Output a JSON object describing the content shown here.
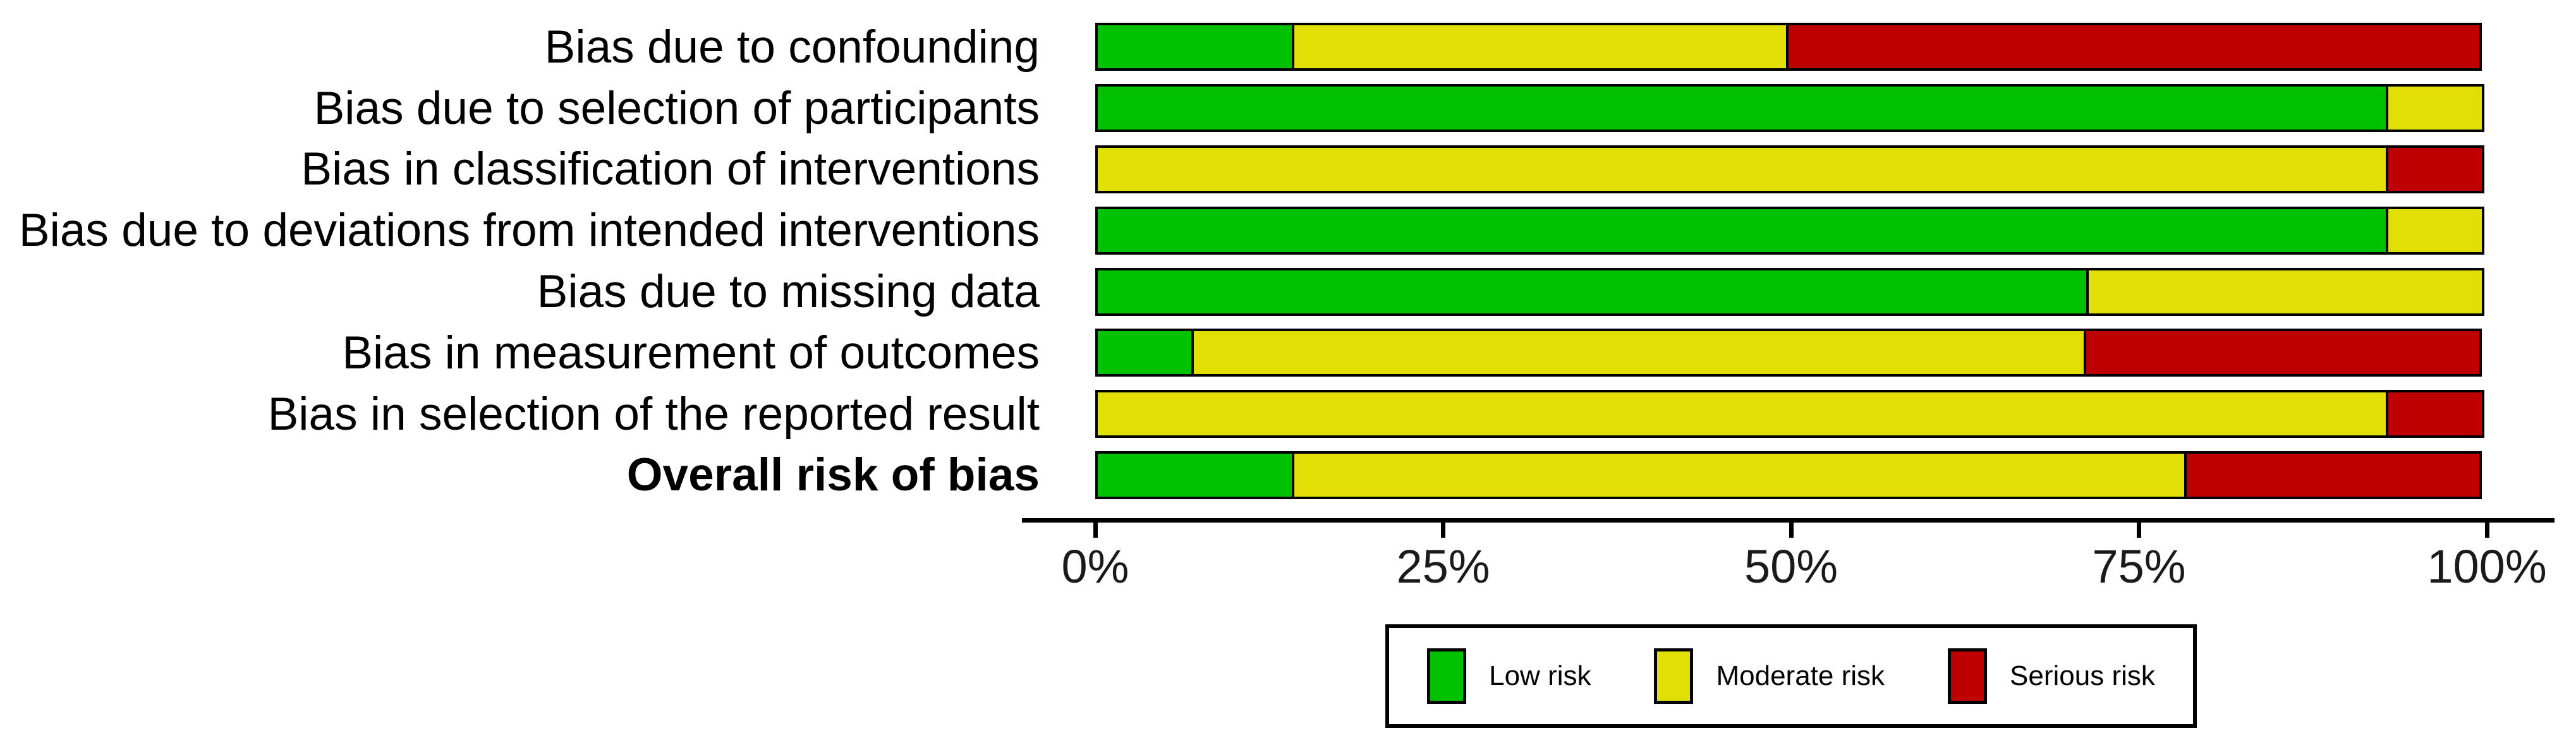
{
  "figure": {
    "background": "#FFFFFF",
    "text_color": "#000000"
  },
  "chart_data": {
    "type": "bar",
    "variant": "horizontal-stacked-percentage",
    "title": "",
    "xlabel": "",
    "ylabel": "",
    "grid": false,
    "xlim": [
      0,
      100
    ],
    "categories": [
      {
        "label": "Bias due to confounding",
        "bold": false
      },
      {
        "label": "Bias due to selection of participants",
        "bold": false
      },
      {
        "label": "Bias in classification of interventions",
        "bold": false
      },
      {
        "label": "Bias due to deviations from intended interventions",
        "bold": false
      },
      {
        "label": "Bias due to missing data",
        "bold": false
      },
      {
        "label": "Bias in measurement of outcomes",
        "bold": false
      },
      {
        "label": "Bias in selection of the reported result",
        "bold": false
      },
      {
        "label": "Overall risk of bias",
        "bold": true
      }
    ],
    "series": [
      {
        "name": "Low risk",
        "color": "#02C100",
        "values": [
          14.3,
          92.9,
          0,
          92.9,
          71.4,
          7.1,
          0,
          14.3
        ]
      },
      {
        "name": "Moderate risk",
        "color": "#E2DF07",
        "values": [
          35.7,
          7.1,
          92.9,
          7.1,
          28.6,
          64.3,
          92.9,
          64.3
        ]
      },
      {
        "name": "Serious risk",
        "color": "#BF0000",
        "values": [
          50.0,
          0,
          7.1,
          0,
          0,
          28.6,
          7.1,
          21.4
        ]
      }
    ],
    "x_axis": {
      "ticks": [
        {
          "label": "0%",
          "value": 0
        },
        {
          "label": "25%",
          "value": 25
        },
        {
          "label": "50%",
          "value": 50
        },
        {
          "label": "75%",
          "value": 75
        },
        {
          "label": "100%",
          "value": 100
        }
      ],
      "axis_color": "#000000"
    },
    "legend": {
      "position": "bottom-center",
      "border_color": "#000000",
      "items": [
        {
          "label": "Low risk",
          "color": "#02C100"
        },
        {
          "label": "Moderate risk",
          "color": "#E2DF07"
        },
        {
          "label": "Serious risk",
          "color": "#BF0000"
        }
      ]
    },
    "bar_border_color": "#000000"
  }
}
